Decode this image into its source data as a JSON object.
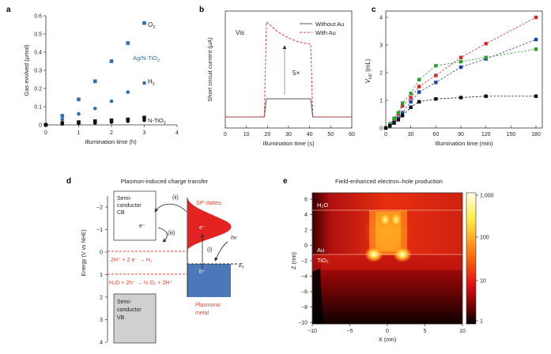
{
  "panels": {
    "a": {
      "letter": "a",
      "chart_data": {
        "type": "scatter",
        "xlabel": "Illumination time (h)",
        "ylabel": "Gas evolved (µmol)",
        "xlim": [
          0,
          4
        ],
        "ylim": [
          0,
          0.6
        ],
        "xticks": [
          "0",
          "1",
          "2",
          "3",
          "4"
        ],
        "yticks": [
          "0",
          "0.1",
          "0.2",
          "0.3",
          "0.4",
          "0.5",
          "0.6"
        ],
        "series": [
          {
            "name": "O2 Ag/N-TiO2",
            "color": "#2f6fb5",
            "marker": "square",
            "x": [
              0,
              0.5,
              1,
              1.5,
              2,
              2.5,
              3
            ],
            "y": [
              0,
              0.05,
              0.14,
              0.24,
              0.35,
              0.45,
              0.56
            ]
          },
          {
            "name": "H2 Ag/N-TiO2",
            "color": "#2f6fb5",
            "marker": "circle",
            "x": [
              0,
              0.5,
              1,
              1.5,
              2,
              2.5,
              3
            ],
            "y": [
              0,
              0.03,
              0.06,
              0.09,
              0.13,
              0.18,
              0.23
            ]
          },
          {
            "name": "O2 N-TiO2",
            "color": "#111111",
            "marker": "square",
            "x": [
              0,
              0.5,
              1,
              1.5,
              2,
              2.5,
              3
            ],
            "y": [
              0,
              0.01,
              0.015,
              0.02,
              0.025,
              0.03,
              0.04
            ]
          },
          {
            "name": "H2 N-TiO2",
            "color": "#111111",
            "marker": "circle",
            "x": [
              0,
              0.5,
              1,
              1.5,
              2,
              2.5,
              3
            ],
            "y": [
              0,
              0.005,
              0.008,
              0.01,
              0.015,
              0.02,
              0.025
            ]
          }
        ],
        "annotations": {
          "o2": "O",
          "o2_sub": "2",
          "ag": "Ag/N-TiO",
          "ag_sub": "2",
          "h2": "H",
          "h2_sub": "2",
          "n": "N-TiO",
          "n_sub": "2"
        }
      }
    },
    "b": {
      "letter": "b",
      "chart_data": {
        "type": "line",
        "xlabel": "Illumination time (s)",
        "ylabel": "Short circuit current (µA)",
        "xlim": [
          0,
          60
        ],
        "ylim": [
          0,
          25
        ],
        "xticks": [
          "0",
          "10",
          "20",
          "30",
          "40",
          "50",
          "60"
        ],
        "series": [
          {
            "name": "Without Au",
            "color": "#555555",
            "dash": "solid",
            "x": [
              0,
              18.5,
              19.5,
              40.5,
              41.5,
              60
            ],
            "y": [
              0,
              0,
              4.5,
              4.5,
              0,
              0
            ]
          },
          {
            "name": "With Au",
            "color": "#d63a3a",
            "dash": "dashed",
            "x": [
              0,
              18.5,
              19.5,
              25,
              30,
              35,
              40.5,
              41.5,
              60
            ],
            "y": [
              0,
              0,
              23.5,
              21,
              19.5,
              18.5,
              18,
              0,
              0
            ]
          }
        ],
        "annotations": {
          "vis": "Vis",
          "fold": "5×"
        }
      }
    },
    "c": {
      "letter": "c",
      "chart_data": {
        "type": "scatter",
        "xlabel": "Illumination time (min)",
        "ylabel": "V",
        "ylabel_sub": "H2",
        "ylabel_unit": " (mL)",
        "xlim": [
          0,
          180
        ],
        "ylim": [
          0,
          4
        ],
        "xticks": [
          "0",
          "30",
          "60",
          "90",
          "120",
          "150",
          "180"
        ],
        "yticks": [
          "0",
          "1",
          "2",
          "3",
          "4"
        ],
        "series": [
          {
            "name": "red",
            "color": "#d62728",
            "x": [
              0,
              5,
              10,
              15,
              20,
              30,
              40,
              60,
              90,
              120,
              180
            ],
            "y": [
              0,
              0.1,
              0.3,
              0.5,
              0.8,
              1.1,
              1.5,
              1.9,
              2.55,
              3.05,
              4.0
            ]
          },
          {
            "name": "blue",
            "color": "#1f3fa8",
            "x": [
              0,
              5,
              10,
              15,
              20,
              30,
              40,
              60,
              90,
              120,
              180
            ],
            "y": [
              0,
              0.08,
              0.2,
              0.35,
              0.55,
              0.95,
              1.3,
              1.65,
              2.2,
              2.5,
              3.2
            ]
          },
          {
            "name": "green",
            "color": "#2ca02c",
            "x": [
              0,
              5,
              10,
              15,
              20,
              30,
              40,
              60,
              90,
              120,
              180
            ],
            "y": [
              0,
              0.15,
              0.35,
              0.55,
              0.9,
              1.25,
              1.75,
              2.25,
              2.4,
              2.55,
              2.85
            ]
          },
          {
            "name": "black",
            "color": "#111111",
            "x": [
              0,
              5,
              10,
              15,
              20,
              30,
              40,
              60,
              90,
              120,
              180
            ],
            "y": [
              0,
              0.08,
              0.18,
              0.3,
              0.45,
              0.75,
              0.95,
              1.05,
              1.1,
              1.15,
              1.15
            ]
          }
        ]
      }
    },
    "d": {
      "letter": "d",
      "title": "Plasmon-induced charge transfer",
      "yaxis_label": "Energy (V vs NHE)",
      "yticks": [
        "−2",
        "−1",
        "0",
        "1",
        "2",
        "3",
        "4"
      ],
      "semi_cb_1": "Semi-",
      "semi_cb_2": "conductor",
      "semi_cb_3": "CB",
      "semi_vb_1": "Semi-",
      "semi_vb_2": "conductor",
      "semi_vb_3": "VB",
      "step_ii": "(ii)",
      "step_iii": "(iii)",
      "step_i": "(i)",
      "electron_cb": "e⁻",
      "electron_sp": "e⁻",
      "hole": "h⁺",
      "hv": "hν",
      "ef": "E",
      "ef_sub": "f",
      "sp_states": "SP states",
      "plasmonic_1": "Plasmonic",
      "plasmonic_2": "metal",
      "reaction_h2": "2H⁺ + 2 e⁻ → H₂",
      "reaction_o2": "H₂O + 2h⁺ → ½ O₂ + 2H⁺",
      "colors": {
        "accent": "#e8442c",
        "sp_fill": "#e52222",
        "metal_fill": "#4a78b8"
      }
    },
    "e": {
      "letter": "e",
      "title": "Field-enhanced electron–hole production",
      "xlabel": "X (nm)",
      "ylabel": "Z (nm)",
      "xticks": [
        "−10",
        "−5",
        "0",
        "5",
        "10"
      ],
      "yticks": [
        "6",
        "4",
        "2",
        "0",
        "−2",
        "−4",
        "−6",
        "−8",
        "−10"
      ],
      "label_h2o": "H₂O",
      "label_au": "Au",
      "label_tio2": "TiO₂",
      "colorbar_ticks": [
        "1,000",
        "100",
        "10",
        "1"
      ]
    }
  }
}
